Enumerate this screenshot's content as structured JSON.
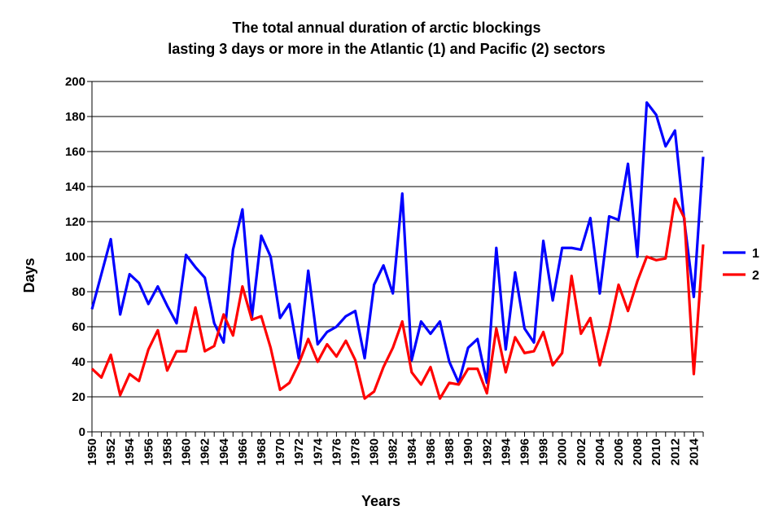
{
  "chart_data": {
    "type": "line",
    "title": "The total annual duration of arctic blockings",
    "subtitle": "lasting 3 days or more in the Atlantic (1) and Pacific (2) sectors",
    "xlabel": "Years",
    "ylabel": "Days",
    "xlim": [
      1950,
      2015
    ],
    "ylim": [
      0,
      200
    ],
    "yticks": [
      0,
      20,
      40,
      60,
      80,
      100,
      120,
      140,
      160,
      180,
      200
    ],
    "xtick_labels": [
      "1950",
      "1952",
      "1954",
      "1956",
      "1958",
      "1960",
      "1962",
      "1964",
      "1966",
      "1968",
      "1970",
      "1972",
      "1974",
      "1976",
      "1978",
      "1980",
      "1982",
      "1984",
      "1986",
      "1988",
      "1990",
      "1992",
      "1994",
      "1996",
      "1998",
      "2000",
      "2002",
      "2004",
      "2006",
      "2008",
      "2010",
      "2012",
      "2014"
    ],
    "grid": "horizontal",
    "legend": "right",
    "x": [
      1950,
      1951,
      1952,
      1953,
      1954,
      1955,
      1956,
      1957,
      1958,
      1959,
      1960,
      1961,
      1962,
      1963,
      1964,
      1965,
      1966,
      1967,
      1968,
      1969,
      1970,
      1971,
      1972,
      1973,
      1974,
      1975,
      1976,
      1977,
      1978,
      1979,
      1980,
      1981,
      1982,
      1983,
      1984,
      1985,
      1986,
      1987,
      1988,
      1989,
      1990,
      1991,
      1992,
      1993,
      1994,
      1995,
      1996,
      1997,
      1998,
      1999,
      2000,
      2001,
      2002,
      2003,
      2004,
      2005,
      2006,
      2007,
      2008,
      2009,
      2010,
      2011,
      2012,
      2013,
      2014,
      2015
    ],
    "series": [
      {
        "name": "1",
        "color": "#0000ff",
        "values": [
          70,
          90,
          110,
          67,
          90,
          85,
          73,
          83,
          72,
          62,
          101,
          94,
          88,
          62,
          51,
          104,
          127,
          65,
          112,
          100,
          65,
          73,
          42,
          92,
          50,
          57,
          60,
          66,
          69,
          42,
          84,
          95,
          79,
          136,
          41,
          63,
          56,
          63,
          40,
          28,
          48,
          53,
          28,
          105,
          47,
          91,
          59,
          51,
          109,
          75,
          105,
          105,
          104,
          122,
          79,
          123,
          121,
          153,
          100,
          188,
          181,
          163,
          172,
          120,
          77,
          157
        ]
      },
      {
        "name": "2",
        "color": "#ff0000",
        "values": [
          36,
          31,
          44,
          21,
          33,
          29,
          47,
          58,
          35,
          46,
          46,
          71,
          46,
          49,
          67,
          55,
          83,
          64,
          66,
          48,
          24,
          28,
          39,
          53,
          40,
          50,
          43,
          52,
          41,
          19,
          23,
          37,
          48,
          63,
          34,
          27,
          37,
          19,
          28,
          27,
          36,
          36,
          22,
          59,
          34,
          54,
          45,
          46,
          57,
          38,
          45,
          89,
          56,
          65,
          38,
          59,
          84,
          69,
          86,
          100,
          98,
          99,
          133,
          122,
          33,
          107
        ]
      }
    ]
  }
}
